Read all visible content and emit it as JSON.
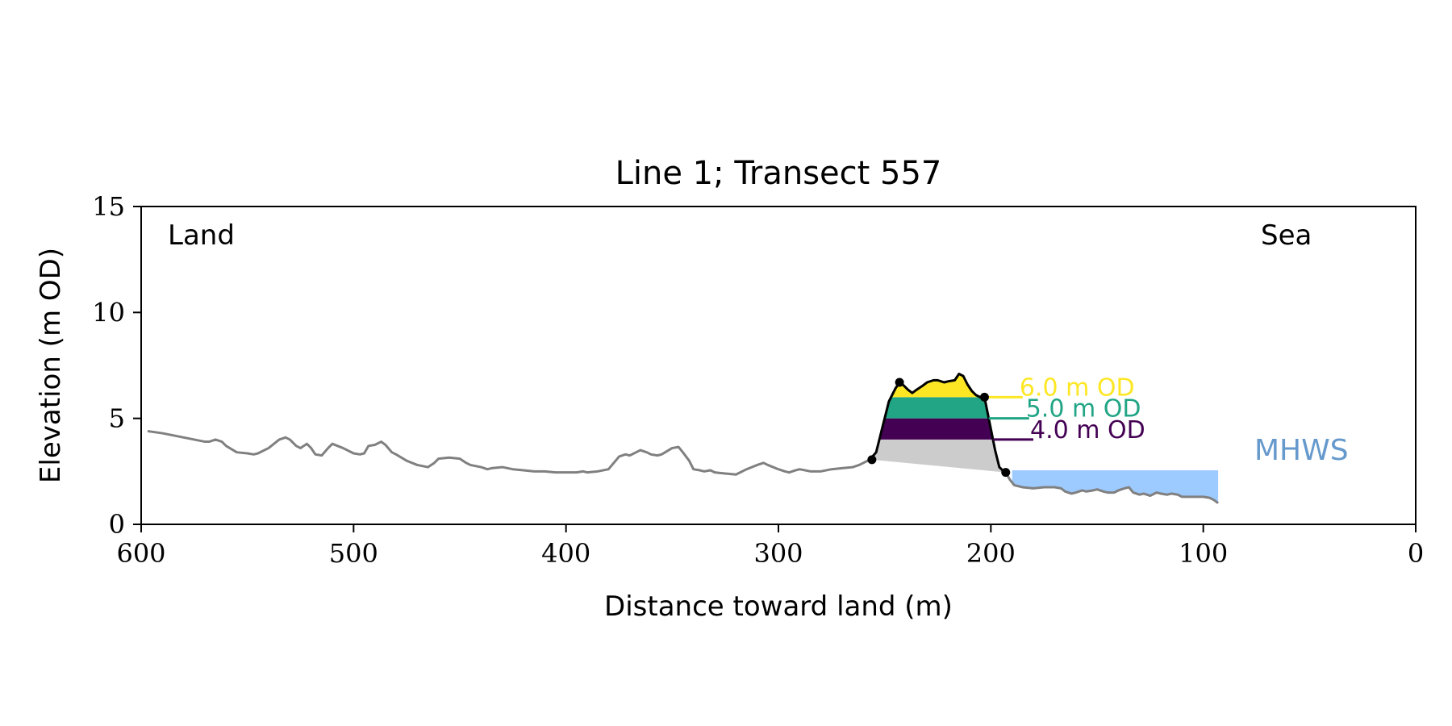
{
  "chart_data": {
    "type": "line",
    "title": "Line 1; Transect 557",
    "xlabel": "Distance toward land (m)",
    "ylabel": "Elevation (m OD)",
    "xlim": [
      600,
      0
    ],
    "ylim": [
      0,
      15
    ],
    "xticks": [
      600,
      500,
      400,
      300,
      200,
      100,
      0
    ],
    "yticks": [
      0,
      5,
      10,
      15
    ],
    "grid": false,
    "corner_labels": {
      "left": "Land",
      "right": "Sea"
    },
    "colors": {
      "profile": "#808080",
      "dune_outline": "#000000",
      "dune_base_fill": "#cccccc",
      "mhws_fill": "#9ecbff",
      "mhws_text": "#6699cc",
      "level_6": "#fde725",
      "level_5": "#21a585",
      "level_4": "#440154"
    },
    "profile": {
      "x": [
        597,
        590,
        585,
        580,
        575,
        570,
        568,
        565,
        562,
        560,
        555,
        550,
        547,
        545,
        540,
        535,
        532,
        530,
        527,
        525,
        522,
        520,
        518,
        515,
        512,
        510,
        505,
        500,
        497,
        495,
        493,
        490,
        487,
        485,
        482,
        480,
        475,
        470,
        465,
        462,
        460,
        455,
        450,
        447,
        445,
        440,
        437,
        435,
        430,
        425,
        420,
        415,
        410,
        405,
        400,
        395,
        392,
        390,
        385,
        380,
        375,
        372,
        370,
        367,
        365,
        362,
        360,
        357,
        355,
        350,
        347,
        345,
        342,
        340,
        337,
        335,
        332,
        330,
        325,
        320,
        315,
        310,
        307,
        305,
        300,
        297,
        295,
        292,
        290,
        285,
        280,
        275,
        270,
        265,
        262,
        260,
        257
      ],
      "y": [
        4.4,
        4.3,
        4.2,
        4.1,
        4.0,
        3.9,
        3.9,
        4.0,
        3.9,
        3.7,
        3.4,
        3.35,
        3.3,
        3.35,
        3.6,
        4.0,
        4.1,
        4.0,
        3.7,
        3.6,
        3.8,
        3.6,
        3.3,
        3.25,
        3.6,
        3.8,
        3.6,
        3.35,
        3.3,
        3.35,
        3.7,
        3.75,
        3.9,
        3.75,
        3.4,
        3.3,
        3.0,
        2.8,
        2.7,
        2.9,
        3.1,
        3.15,
        3.1,
        2.9,
        2.8,
        2.7,
        2.6,
        2.65,
        2.7,
        2.6,
        2.55,
        2.5,
        2.5,
        2.45,
        2.45,
        2.45,
        2.5,
        2.45,
        2.5,
        2.6,
        3.2,
        3.3,
        3.25,
        3.4,
        3.5,
        3.4,
        3.3,
        3.25,
        3.3,
        3.6,
        3.65,
        3.4,
        3.0,
        2.6,
        2.55,
        2.5,
        2.55,
        2.45,
        2.4,
        2.35,
        2.6,
        2.8,
        2.9,
        2.8,
        2.6,
        2.5,
        2.45,
        2.55,
        2.6,
        2.5,
        2.5,
        2.6,
        2.65,
        2.7,
        2.8,
        2.9,
        3.05
      ]
    },
    "dune": {
      "x": [
        257,
        254,
        252,
        250,
        248,
        245,
        243,
        241,
        239,
        237,
        235,
        232,
        230,
        227,
        225,
        222,
        220,
        217,
        215,
        213,
        211,
        209,
        207,
        205,
        203,
        202,
        200,
        198,
        196,
        194,
        193
      ],
      "y": [
        3.05,
        3.4,
        4.2,
        5.0,
        5.8,
        6.4,
        6.7,
        6.55,
        6.35,
        6.2,
        6.35,
        6.55,
        6.7,
        6.8,
        6.8,
        6.7,
        6.75,
        6.8,
        7.1,
        7.0,
        6.6,
        6.3,
        6.1,
        6.0,
        6.0,
        5.5,
        4.5,
        3.5,
        2.7,
        2.5,
        2.45
      ]
    },
    "dune_points": [
      {
        "x": 256,
        "y": 3.05
      },
      {
        "x": 243,
        "y": 6.7
      },
      {
        "x": 203,
        "y": 6.0
      },
      {
        "x": 193,
        "y": 2.45
      }
    ],
    "seaward_profile": {
      "x": [
        193,
        191,
        189,
        185,
        180,
        175,
        170,
        167,
        165,
        162,
        160,
        157,
        155,
        152,
        150,
        147,
        145,
        142,
        140,
        137,
        135,
        133,
        130,
        128,
        125,
        122,
        120,
        117,
        115,
        112,
        110,
        105,
        100,
        97,
        95,
        93
      ],
      "y": [
        2.45,
        2.1,
        1.85,
        1.75,
        1.7,
        1.75,
        1.75,
        1.7,
        1.55,
        1.45,
        1.5,
        1.6,
        1.55,
        1.6,
        1.65,
        1.55,
        1.5,
        1.5,
        1.6,
        1.7,
        1.75,
        1.5,
        1.4,
        1.45,
        1.35,
        1.5,
        1.45,
        1.4,
        1.45,
        1.4,
        1.3,
        1.3,
        1.3,
        1.25,
        1.15,
        1.0
      ]
    },
    "mhws": {
      "label": "MHWS",
      "level": 2.55,
      "x_from": 190,
      "x_to": 93
    },
    "levels": [
      {
        "label": "6.0 m OD",
        "value": 6.0,
        "color": "#fde725",
        "label_x": 185
      },
      {
        "label": "5.0 m OD",
        "value": 5.0,
        "color": "#21a585",
        "label_x": 182
      },
      {
        "label": "4.0 m OD",
        "value": 4.0,
        "color": "#440154",
        "label_x": 180
      }
    ]
  }
}
